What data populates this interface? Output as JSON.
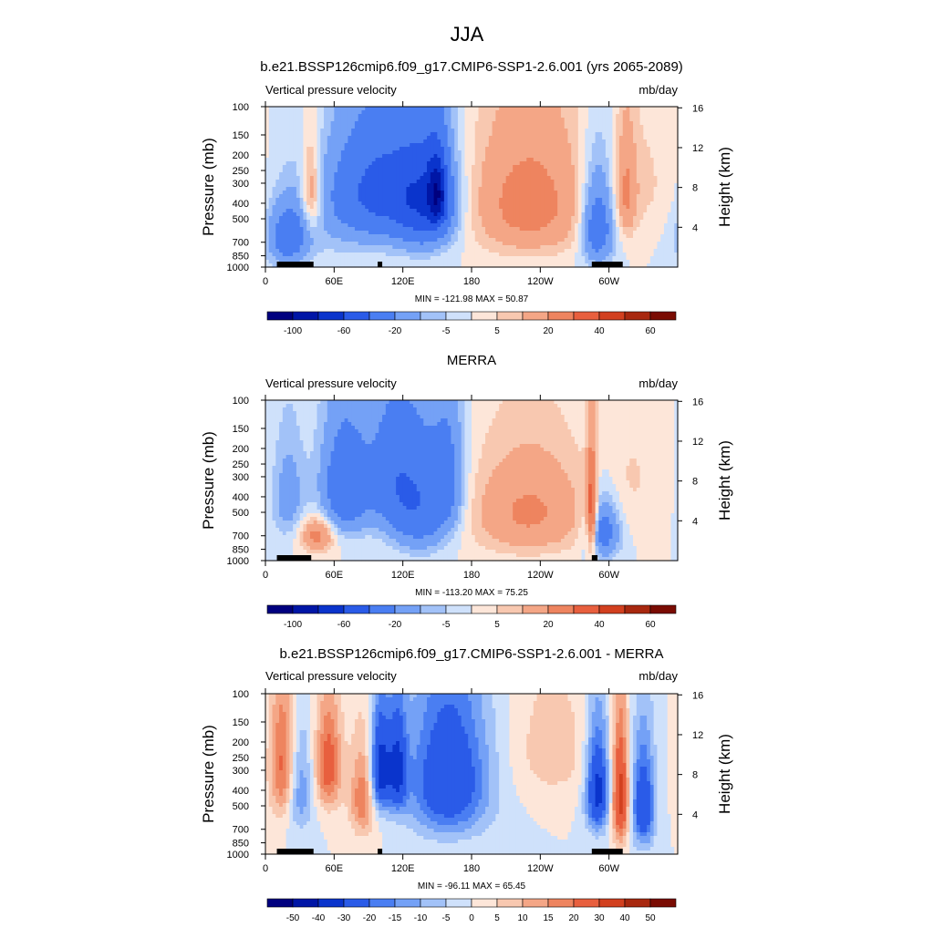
{
  "page_title": "JJA",
  "panels": [
    {
      "title": "b.e21.BSSP126cmip6.f09_g17.CMIP6-SSP1-2.6.001 (yrs 2065-2089)",
      "left_label": "Vertical pressure velocity",
      "right_label": "mb/day",
      "minmax": "MIN = -121.98  MAX =  50.87",
      "colorbar_labels": [
        "-100",
        "-60",
        "-20",
        "-5",
        "5",
        "20",
        "40",
        "60"
      ]
    },
    {
      "title": "MERRA",
      "left_label": "Vertical pressure velocity",
      "right_label": "mb/day",
      "minmax": "MIN = -113.20  MAX =  75.25",
      "colorbar_labels": [
        "-100",
        "-60",
        "-20",
        "-5",
        "5",
        "20",
        "40",
        "60"
      ]
    },
    {
      "title": "b.e21.BSSP126cmip6.f09_g17.CMIP6-SSP1-2.6.001 - MERRA",
      "left_label": "Vertical pressure velocity",
      "right_label": "mb/day",
      "minmax": "MIN = -96.11  MAX =  65.45",
      "colorbar_labels": [
        "-50",
        "-40",
        "-30",
        "-20",
        "-15",
        "-10",
        "-5",
        "0",
        "5",
        "10",
        "15",
        "20",
        "30",
        "40",
        "50"
      ]
    }
  ],
  "colors": {
    "blues": [
      "#00007f",
      "#0016a6",
      "#0a34cc",
      "#2a5be8",
      "#4a7ef2",
      "#74a1f6",
      "#a2c2f8",
      "#cfe1fb"
    ],
    "reds": [
      "#fde6d9",
      "#f8c8b0",
      "#f4a686",
      "#ee845f",
      "#e85f3e",
      "#d2401f",
      "#a8280f",
      "#7a0c03"
    ],
    "orography": "#000000"
  },
  "chart_data": [
    {
      "type": "heatmap",
      "title": "b.e21.BSSP126cmip6.f09_g17.CMIP6-SSP1-2.6.001 (yrs 2065-2089)",
      "ylabel": "Pressure (mb)",
      "ylabel_right": "Height (km)",
      "units": "mb/day",
      "x_ticks": [
        {
          "lon": 0,
          "label": "0"
        },
        {
          "lon": 60,
          "label": "60E"
        },
        {
          "lon": 120,
          "label": "120E"
        },
        {
          "lon": 180,
          "label": "180"
        },
        {
          "lon": 240,
          "label": "120W"
        },
        {
          "lon": 300,
          "label": "60W"
        }
      ],
      "xlim": [
        0,
        360
      ],
      "y_ticks": [
        "100",
        "150",
        "200",
        "250",
        "300",
        "400",
        "500",
        "700",
        "850",
        "1000"
      ],
      "y_right_ticks": [
        "4",
        "8",
        "12",
        "16"
      ],
      "ylim": [
        1000,
        100
      ],
      "levels": [
        -120,
        -100,
        -80,
        -60,
        -40,
        -20,
        -10,
        -5,
        0,
        5,
        10,
        20,
        30,
        40,
        50,
        60,
        70
      ],
      "min": -121.98,
      "max": 50.87,
      "features": [
        {
          "lon": 20,
          "p": 650,
          "amp": -30,
          "wx": 12,
          "wp": 200
        },
        {
          "lon": 40,
          "p": 350,
          "amp": 22,
          "wx": 6,
          "wp": 150
        },
        {
          "lon": 100,
          "p": 320,
          "amp": -40,
          "wx": 28,
          "wp": 180
        },
        {
          "lon": 140,
          "p": 400,
          "amp": -45,
          "wx": 18,
          "wp": 220
        },
        {
          "lon": 150,
          "p": 350,
          "amp": -60,
          "wx": 6,
          "wp": 120
        },
        {
          "lon": 80,
          "p": 500,
          "amp": -10,
          "wx": 40,
          "wp": 250
        },
        {
          "lon": 230,
          "p": 400,
          "amp": 26,
          "wx": 35,
          "wp": 260
        },
        {
          "lon": 290,
          "p": 550,
          "amp": -35,
          "wx": 10,
          "wp": 250
        },
        {
          "lon": 315,
          "p": 350,
          "amp": 18,
          "wx": 6,
          "wp": 180
        },
        {
          "lon": 330,
          "p": 300,
          "amp": 6,
          "wx": 20,
          "wp": 200
        }
      ],
      "land_spans": [
        [
          10,
          42
        ],
        [
          98,
          102
        ],
        [
          285,
          312
        ]
      ]
    },
    {
      "type": "heatmap",
      "title": "MERRA",
      "ylabel": "Pressure (mb)",
      "ylabel_right": "Height (km)",
      "units": "mb/day",
      "x_ticks": [
        {
          "lon": 0,
          "label": "0"
        },
        {
          "lon": 60,
          "label": "60E"
        },
        {
          "lon": 120,
          "label": "120E"
        },
        {
          "lon": 180,
          "label": "180"
        },
        {
          "lon": 240,
          "label": "120W"
        },
        {
          "lon": 300,
          "label": "60W"
        }
      ],
      "xlim": [
        0,
        360
      ],
      "y_ticks": [
        "100",
        "150",
        "200",
        "250",
        "300",
        "400",
        "500",
        "700",
        "850",
        "1000"
      ],
      "y_right_ticks": [
        "4",
        "8",
        "12",
        "16"
      ],
      "ylim": [
        1000,
        100
      ],
      "levels": [
        -120,
        -100,
        -80,
        -60,
        -40,
        -20,
        -10,
        -5,
        0,
        5,
        10,
        20,
        30,
        40,
        50,
        60,
        70
      ],
      "min": -113.2,
      "max": 75.25,
      "features": [
        {
          "lon": 20,
          "p": 400,
          "amp": -15,
          "wx": 10,
          "wp": 200
        },
        {
          "lon": 45,
          "p": 700,
          "amp": 25,
          "wx": 10,
          "wp": 120
        },
        {
          "lon": 70,
          "p": 350,
          "amp": -35,
          "wx": 15,
          "wp": 200
        },
        {
          "lon": 110,
          "p": 300,
          "amp": -25,
          "wx": 15,
          "wp": 200
        },
        {
          "lon": 135,
          "p": 450,
          "amp": -35,
          "wx": 18,
          "wp": 250
        },
        {
          "lon": 160,
          "p": 300,
          "amp": -20,
          "wx": 10,
          "wp": 200
        },
        {
          "lon": 230,
          "p": 500,
          "amp": 22,
          "wx": 35,
          "wp": 250
        },
        {
          "lon": 285,
          "p": 500,
          "amp": 40,
          "wx": 3,
          "wp": 250
        },
        {
          "lon": 295,
          "p": 650,
          "amp": -30,
          "wx": 10,
          "wp": 200
        },
        {
          "lon": 320,
          "p": 300,
          "amp": 5,
          "wx": 20,
          "wp": 200
        }
      ],
      "land_spans": [
        [
          10,
          40
        ],
        [
          285,
          290
        ]
      ]
    },
    {
      "type": "heatmap",
      "title": "b.e21.BSSP126cmip6.f09_g17.CMIP6-SSP1-2.6.001 - MERRA",
      "ylabel": "Pressure (mb)",
      "ylabel_right": "Height (km)",
      "units": "mb/day",
      "x_ticks": [
        {
          "lon": 0,
          "label": "0"
        },
        {
          "lon": 60,
          "label": "60E"
        },
        {
          "lon": 120,
          "label": "120E"
        },
        {
          "lon": 180,
          "label": "180"
        },
        {
          "lon": 240,
          "label": "120W"
        },
        {
          "lon": 300,
          "label": "60W"
        }
      ],
      "xlim": [
        0,
        360
      ],
      "y_ticks": [
        "100",
        "150",
        "200",
        "250",
        "300",
        "400",
        "500",
        "700",
        "850",
        "1000"
      ],
      "y_right_ticks": [
        "4",
        "8",
        "12",
        "16"
      ],
      "ylim": [
        1000,
        100
      ],
      "levels": [
        -55,
        -50,
        -40,
        -30,
        -20,
        -15,
        -10,
        -5,
        0,
        5,
        10,
        15,
        20,
        30,
        40,
        50,
        60
      ],
      "min": -96.11,
      "max": 65.45,
      "features": [
        {
          "lon": 15,
          "p": 280,
          "amp": 22,
          "wx": 8,
          "wp": 200
        },
        {
          "lon": 30,
          "p": 400,
          "amp": -15,
          "wx": 8,
          "wp": 200
        },
        {
          "lon": 55,
          "p": 280,
          "amp": 25,
          "wx": 8,
          "wp": 150
        },
        {
          "lon": 85,
          "p": 450,
          "amp": 20,
          "wx": 8,
          "wp": 200
        },
        {
          "lon": 100,
          "p": 300,
          "amp": -35,
          "wx": 6,
          "wp": 150
        },
        {
          "lon": 115,
          "p": 300,
          "amp": -30,
          "wx": 6,
          "wp": 150
        },
        {
          "lon": 160,
          "p": 350,
          "amp": -30,
          "wx": 25,
          "wp": 260
        },
        {
          "lon": 250,
          "p": 220,
          "amp": 8,
          "wx": 25,
          "wp": 150
        },
        {
          "lon": 290,
          "p": 400,
          "amp": -35,
          "wx": 7,
          "wp": 200
        },
        {
          "lon": 310,
          "p": 450,
          "amp": 35,
          "wx": 5,
          "wp": 250
        },
        {
          "lon": 330,
          "p": 500,
          "amp": -30,
          "wx": 7,
          "wp": 250
        }
      ],
      "land_spans": [
        [
          10,
          42
        ],
        [
          98,
          102
        ],
        [
          285,
          312
        ]
      ]
    }
  ]
}
